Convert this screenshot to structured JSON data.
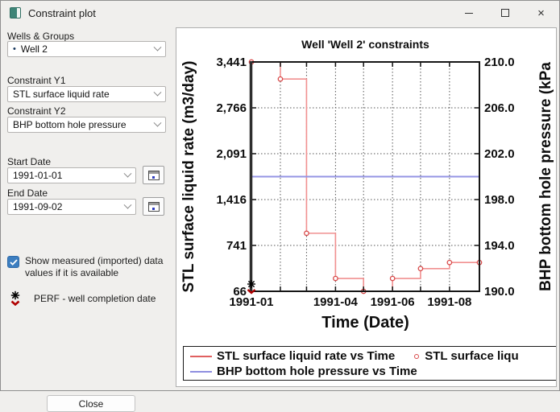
{
  "window": {
    "title": "Constraint plot",
    "controls": {
      "close_glyph": "×"
    }
  },
  "sidebar": {
    "wells_groups_label": "Wells & Groups",
    "well_select": {
      "bullet": "•",
      "value": "Well 2"
    },
    "constraint_y1_label": "Constraint Y1",
    "constraint_y1_value": "STL surface liquid rate",
    "constraint_y2_label": "Constraint Y2",
    "constraint_y2_value": "BHP bottom hole pressure",
    "start_date_label": "Start Date",
    "start_date_value": "1991-01-01",
    "end_date_label": "End Date",
    "end_date_value": "1991-09-02",
    "show_measured_checkbox": {
      "checked": true,
      "label": "Show measured (imported) data values if it is available"
    },
    "perf_legend_label": "PERF - well completion date",
    "close_button_label": "Close"
  },
  "chart_data": {
    "type": "line",
    "title": "Well 'Well 2' constraints",
    "xlabel": "Time (Date)",
    "ylabel_left": "STL surface liquid rate (m3/day)",
    "ylabel_right": "BHP bottom hole pressure (kPa",
    "x_start": "1991-01-01",
    "x_end": "1991-09-02",
    "x_domain_days": [
      0,
      244
    ],
    "y1_range": [
      66,
      3441
    ],
    "y2_range": [
      190,
      210
    ],
    "grid": true,
    "legend_position": "bottom",
    "y1_ticks": [
      {
        "value": 3441,
        "label": "3,441"
      },
      {
        "value": 2766,
        "label": "2,766"
      },
      {
        "value": 2091,
        "label": "2,091"
      },
      {
        "value": 1416,
        "label": "1,416"
      },
      {
        "value": 741,
        "label": "741"
      },
      {
        "value": 66,
        "label": "66"
      }
    ],
    "y2_ticks": [
      {
        "value": 210,
        "label": "210.0"
      },
      {
        "value": 206,
        "label": "206.0"
      },
      {
        "value": 202,
        "label": "202.0"
      },
      {
        "value": 198,
        "label": "198.0"
      },
      {
        "value": 194,
        "label": "194.0"
      },
      {
        "value": 190,
        "label": "190.0"
      }
    ],
    "x_ticks": [
      {
        "day": 0,
        "label": "1991-01"
      },
      {
        "day": 90,
        "label": "1991-04"
      },
      {
        "day": 151,
        "label": "1991-06"
      },
      {
        "day": 212,
        "label": "1991-08"
      }
    ],
    "grid_month_days": [
      31,
      59,
      90,
      120,
      151,
      181,
      212
    ],
    "series": [
      {
        "name": "STL surface liquid rate vs Time",
        "axis": "y1",
        "step": true,
        "markers": true,
        "color": "#f19090",
        "marker_color": "#d84848",
        "width": 1.6,
        "points": [
          {
            "day": 0,
            "date": "1991-01-01",
            "value": 3441
          },
          {
            "day": 31,
            "date": "1991-02-01",
            "value": 3190
          },
          {
            "day": 59,
            "date": "1991-03-01",
            "value": 920
          },
          {
            "day": 90,
            "date": "1991-04-01",
            "value": 255
          },
          {
            "day": 120,
            "date": "1991-05-01",
            "value": 66
          },
          {
            "day": 151,
            "date": "1991-06-01",
            "value": 255
          },
          {
            "day": 181,
            "date": "1991-07-01",
            "value": 400
          },
          {
            "day": 212,
            "date": "1991-08-01",
            "value": 490
          },
          {
            "day": 244,
            "date": "1991-09-02",
            "value": 490
          }
        ]
      },
      {
        "name": "BHP bottom hole pressure vs Time",
        "axis": "y2",
        "step": false,
        "markers": false,
        "color": "#9595e4",
        "width": 2,
        "points": [
          {
            "day": 0,
            "date": "1991-01-01",
            "value": 200
          },
          {
            "day": 244,
            "date": "1991-09-02",
            "value": 200
          }
        ]
      }
    ],
    "perf_marker": {
      "day": 0,
      "value_axis_y1": 66
    },
    "legend": [
      {
        "swatch": "line",
        "color": "#e06060",
        "label": "STL surface liquid rate vs Time"
      },
      {
        "swatch": "marker",
        "color": "#d84848",
        "label": "STL surface liqu"
      },
      {
        "swatch": "line",
        "color": "#8f8fe0",
        "label": "BHP bottom hole pressure vs Time"
      }
    ]
  }
}
